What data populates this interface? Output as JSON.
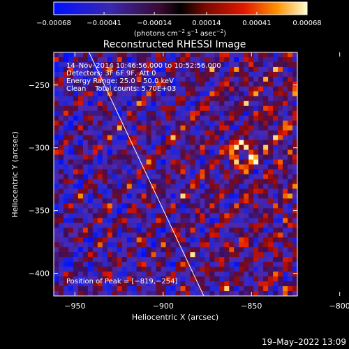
{
  "chart_data": {
    "type": "heatmap",
    "title": "Reconstructed RHESSI Image",
    "xlabel": "Heliocentric X (arcsec)",
    "ylabel": "Heliocentric Y (arcsec)",
    "xlim": [
      -962,
      -824
    ],
    "ylim": [
      -418,
      -224
    ],
    "x_ticks": [
      -950,
      -900,
      -850,
      -800
    ],
    "x_tick_labels": [
      "−950",
      "−900",
      "−850",
      "−800"
    ],
    "y_ticks": [
      -250,
      -300,
      -350,
      -400
    ],
    "y_tick_labels": [
      "−250",
      "−300",
      "−350",
      "−400"
    ],
    "colorbar": {
      "min": -0.00068,
      "max": 0.00068,
      "ticks": [
        -0.00068,
        -0.00041,
        -0.00014,
        0.00014,
        0.00041,
        0.00068
      ],
      "tick_labels": [
        "−0.00068",
        "−0.00041",
        "−0.00014",
        "0.00014",
        "0.00041",
        "0.00068"
      ],
      "units_main": "(photons cm",
      "units_exp1": "−2",
      "units_mid": " s",
      "units_exp2": "−1",
      "units_mid2": " asec",
      "units_exp3": "−2",
      "units_end": ")"
    },
    "annotations": [
      "14–Nov–2014 10:46:56.000 to 10:52:56.000",
      "Detectors: 3F 6F 9F, Att 0",
      "Energy Range: 25.0 – 50.0 keV",
      "Clean    Total counts: 5.70E+03"
    ],
    "peak_label": "Position of Peak = [−819,−254]",
    "peak_position": [
      -819,
      -254
    ],
    "bright_source_center": [
      -855,
      -305
    ],
    "limb_line": [
      [
        -942,
        -224
      ],
      [
        -877,
        -418
      ]
    ]
  },
  "footer": {
    "date": "19–May–2022 13:09"
  }
}
